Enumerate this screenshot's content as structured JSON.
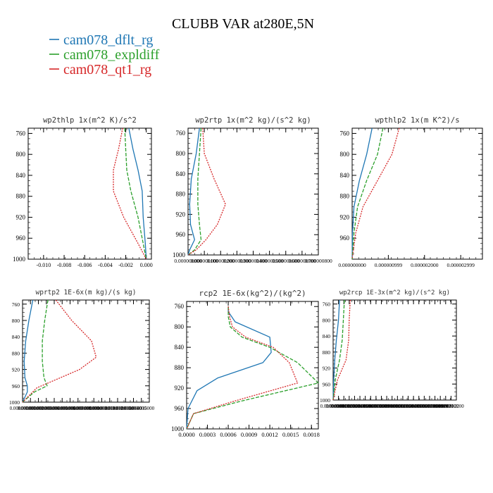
{
  "figure": {
    "title": "CLUBB VAR at280E,5N",
    "legend": [
      {
        "label": "cam078_dflt_rg",
        "color": "#1f77b4"
      },
      {
        "label": "cam078_expldiff",
        "color": "#2ca02c"
      },
      {
        "label": "cam078_qt1_rg",
        "color": "#d62728"
      }
    ]
  },
  "chart_data": [
    {
      "type": "line",
      "title": "wp2thlp  1x(m^2 K)/s^2",
      "xlim": [
        -0.0115,
        0.0005
      ],
      "ylim": [
        1000,
        750
      ],
      "xticks": [
        -0.01,
        -0.008,
        -0.006,
        -0.004,
        -0.002,
        0.0
      ],
      "xtick_labels": [
        "-0.010",
        "-0.008",
        "-0.006",
        "-0.004",
        "-0.002",
        "0.000"
      ],
      "yticks": [
        760,
        800,
        840,
        880,
        920,
        960,
        1000
      ],
      "ytick_labels": [
        "760",
        "800",
        "840",
        "880",
        "920",
        "960",
        "1000"
      ],
      "series": [
        {
          "name": "cam078_dflt_rg",
          "color": "#1f77b4",
          "dash": "solid",
          "x": [
            -0.0017,
            -0.0013,
            -0.0008,
            -0.0004,
            -0.0003,
            -0.0001,
            0.0
          ],
          "y": [
            750,
            790,
            830,
            870,
            920,
            970,
            1000
          ]
        },
        {
          "name": "cam078_expldiff",
          "color": "#2ca02c",
          "dash": "dash",
          "x": [
            -0.0021,
            -0.002,
            -0.0019,
            -0.0015,
            -0.0008,
            -0.0003,
            0.0
          ],
          "y": [
            750,
            790,
            830,
            870,
            920,
            970,
            1000
          ]
        },
        {
          "name": "cam078_qt1_rg",
          "color": "#d62728",
          "dash": "dot",
          "x": [
            -0.0023,
            -0.0027,
            -0.0032,
            -0.0032,
            -0.0022,
            -0.0008,
            0.0
          ],
          "y": [
            750,
            790,
            830,
            870,
            920,
            970,
            1000
          ]
        }
      ]
    },
    {
      "type": "line",
      "title": "wp2rtp  1x(m^2 kg)/(s^2 kg)",
      "xlim": [
        0,
        8e-07
      ],
      "ylim": [
        1000,
        750
      ],
      "xticks": [
        0,
        1e-07,
        2e-07,
        3e-07,
        4e-07,
        5e-07,
        6e-07,
        7e-07,
        8e-07
      ],
      "xtick_labels": [
        "0.000000000",
        "0.000000100",
        "0.000000200",
        "0.000000300",
        "0.000000400",
        "0.000000500",
        "0.000000600",
        "0.000000700",
        "0.000000800"
      ],
      "yticks": [
        760,
        800,
        840,
        880,
        920,
        960,
        1000
      ],
      "ytick_labels": [
        "760",
        "800",
        "840",
        "880",
        "920",
        "960",
        "1000"
      ],
      "series": [
        {
          "name": "cam078_dflt_rg",
          "color": "#1f77b4",
          "dash": "solid",
          "x": [
            7e-08,
            5e-08,
            2e-08,
            1e-08,
            1.5e-08,
            4e-08,
            1e-08,
            0.0
          ],
          "y": [
            750,
            800,
            850,
            900,
            940,
            970,
            990,
            1000
          ]
        },
        {
          "name": "cam078_expldiff",
          "color": "#2ca02c",
          "dash": "dash",
          "x": [
            8e-08,
            7e-08,
            6e-08,
            6e-08,
            7e-08,
            8e-08,
            4e-08,
            0.0
          ],
          "y": [
            750,
            800,
            850,
            900,
            940,
            970,
            990,
            1000
          ]
        },
        {
          "name": "cam078_qt1_rg",
          "color": "#d62728",
          "dash": "dot",
          "x": [
            9e-08,
            1e-07,
            1.6e-07,
            2.3e-07,
            1.8e-07,
            1.1e-07,
            5e-08,
            0.0
          ],
          "y": [
            750,
            800,
            850,
            900,
            940,
            970,
            990,
            1000
          ]
        }
      ]
    },
    {
      "type": "line",
      "title": "wpthlp2  1x(m K^2)/s",
      "xlim": [
        0,
        3.6e-06
      ],
      "ylim": [
        1000,
        750
      ],
      "xticks": [
        0,
        1e-06,
        2e-06,
        3e-06
      ],
      "xtick_labels": [
        "0.000000000",
        "0.000000999",
        "0.000002000",
        "0.000002999"
      ],
      "yticks": [
        760,
        800,
        840,
        880,
        920,
        960
      ],
      "ytick_labels": [
        "760",
        "800",
        "840",
        "880",
        "920",
        "960"
      ],
      "series": [
        {
          "name": "cam078_dflt_rg",
          "color": "#1f77b4",
          "dash": "solid",
          "x": [
            5.5e-07,
            4e-07,
            2e-07,
            5e-08,
            1e-08,
            0.0
          ],
          "y": [
            750,
            800,
            850,
            900,
            950,
            1000
          ]
        },
        {
          "name": "cam078_expldiff",
          "color": "#2ca02c",
          "dash": "dash",
          "x": [
            8.5e-07,
            7e-07,
            4e-07,
            1.5e-07,
            5e-08,
            0.0
          ],
          "y": [
            750,
            800,
            850,
            900,
            950,
            1000
          ]
        },
        {
          "name": "cam078_qt1_rg",
          "color": "#d62728",
          "dash": "dot",
          "x": [
            1.3e-06,
            1.1e-06,
            7e-07,
            3e-07,
            1e-07,
            0.0
          ],
          "y": [
            750,
            800,
            850,
            900,
            950,
            1000
          ]
        }
      ]
    },
    {
      "type": "line",
      "title": "wprtp2  1E-6x(m kg)/(s kg)",
      "xlim": [
        0,
        1.6e-05
      ],
      "ylim": [
        1000,
        750
      ],
      "xticks": [
        0,
        1e-06,
        2e-06,
        3e-06,
        4e-06,
        5e-06,
        6e-06,
        7e-06,
        8e-06,
        9e-06,
        1e-05,
        1.1e-05,
        1.2e-05,
        1.3e-05,
        1.4e-05,
        1.5e-05
      ],
      "xtick_labels": [
        "0.000000000",
        "0.000001000",
        "0.000002000",
        "0.000003000",
        "0.000004000",
        "0.000005000",
        "0.000006000",
        "0.000007000",
        "0.000008000",
        "0.000009000",
        "0.000010000",
        "0.000011000",
        "0.000012000",
        "0.000013000",
        "0.000014000",
        "0.000015000"
      ],
      "yticks": [
        760,
        800,
        840,
        880,
        920,
        960,
        1000
      ],
      "ytick_labels": [
        "760",
        "800",
        "840",
        "880",
        "920",
        "960",
        "1000"
      ],
      "series": [
        {
          "name": "cam078_dflt_rg",
          "color": "#1f77b4",
          "dash": "solid",
          "x": [
            1.3e-06,
            8e-07,
            4e-07,
            2e-07,
            3e-07,
            6e-07,
            6e-07,
            0.0
          ],
          "y": [
            750,
            800,
            850,
            900,
            940,
            960,
            975,
            1000
          ]
        },
        {
          "name": "cam078_expldiff",
          "color": "#2ca02c",
          "dash": "dash",
          "x": [
            3.2e-06,
            2.8e-06,
            2.5e-06,
            2.5e-06,
            2.7e-06,
            3.1e-06,
            1.5e-06,
            0.0
          ],
          "y": [
            750,
            800,
            850,
            900,
            940,
            960,
            975,
            1000
          ]
        },
        {
          "name": "cam078_qt1_rg",
          "color": "#d62728",
          "dash": "dot",
          "x": [
            4.2e-06,
            6.2e-06,
            8.7e-06,
            9.3e-06,
            7.2e-06,
            4.2e-06,
            1.8e-06,
            0.0
          ],
          "y": [
            750,
            800,
            850,
            890,
            920,
            945,
            965,
            1000
          ]
        }
      ]
    },
    {
      "type": "line",
      "title": "rcp2  1E-6x(kg^2)/(kg^2)",
      "xlim": [
        0,
        0.0019
      ],
      "ylim": [
        1000,
        750
      ],
      "xticks": [
        0,
        0.0003,
        0.0006,
        0.0009,
        0.0012,
        0.0015,
        0.0018
      ],
      "xtick_labels": [
        "0.0000",
        "0.0003",
        "0.0006",
        "0.0009",
        "0.0012",
        "0.0015",
        "0.0018"
      ],
      "yticks": [
        760,
        800,
        840,
        880,
        920,
        960,
        1000
      ],
      "ytick_labels": [
        "760",
        "800",
        "840",
        "880",
        "920",
        "960",
        "1000"
      ],
      "series": [
        {
          "name": "cam078_dflt_rg",
          "color": "#1f77b4",
          "dash": "solid",
          "x": [
            0.0006,
            0.0006,
            0.00065,
            0.0007,
            0.0012,
            0.00122,
            0.0011,
            0.00045,
            0.00015,
            2e-05,
            0.0
          ],
          "y": [
            760,
            770,
            780,
            790,
            820,
            850,
            870,
            900,
            925,
            960,
            1000
          ]
        },
        {
          "name": "cam078_expldiff",
          "color": "#2ca02c",
          "dash": "dash",
          "x": [
            0.0006,
            0.0006,
            0.00063,
            0.0008,
            0.0012,
            0.0016,
            0.0019,
            0.0008,
            0.0001,
            0.0
          ],
          "y": [
            760,
            780,
            800,
            820,
            840,
            870,
            910,
            945,
            970,
            1000
          ]
        },
        {
          "name": "cam078_qt1_rg",
          "color": "#d62728",
          "dash": "dot",
          "x": [
            0.0006,
            0.00062,
            0.00066,
            0.00085,
            0.00125,
            0.00148,
            0.0016,
            0.0007,
            0.0001,
            0.0
          ],
          "y": [
            760,
            780,
            800,
            820,
            840,
            870,
            910,
            945,
            970,
            1000
          ]
        }
      ]
    },
    {
      "type": "line",
      "title": "wp2rcp  1E-3x(m^2 kg)/(s^2 kg)",
      "xlim": [
        0,
        2.3e-06
      ],
      "ylim": [
        1000,
        750
      ],
      "xticks": [
        0,
        1e-07,
        2e-07,
        3e-07,
        4e-07,
        5e-07,
        6e-07,
        7e-07,
        8e-07,
        9e-07,
        1e-06,
        1.1e-06,
        1.2e-06,
        1.3e-06,
        1.4e-06,
        1.5e-06,
        1.6e-06,
        1.7e-06,
        1.8e-06,
        1.9e-06,
        2e-06,
        2.1e-06,
        2.2e-06
      ],
      "xtick_labels": [
        "0.000000000",
        "0.000000100",
        "0.000000200",
        "0.000000300",
        "0.000000400",
        "0.000000500",
        "0.000000600",
        "0.000000700",
        "0.000000800",
        "0.000000900",
        "0.000001000",
        "0.000001100",
        "0.000001200",
        "0.000001300",
        "0.000001400",
        "0.000001500",
        "0.000001600",
        "0.000001700",
        "0.000001800",
        "0.000001900",
        "0.000002000",
        "0.000002100",
        "0.000002200"
      ],
      "yticks": [
        760,
        800,
        840,
        880,
        920,
        960,
        1000
      ],
      "ytick_labels": [
        "760",
        "800",
        "840",
        "880",
        "920",
        "960",
        "1000"
      ],
      "series": [
        {
          "name": "cam078_dflt_rg",
          "color": "#1f77b4",
          "dash": "solid",
          "x": [
            1.2e-07,
            1e-07,
            6e-08,
            3e-08,
            1e-08,
            0.0
          ],
          "y": [
            750,
            800,
            850,
            900,
            950,
            1000
          ]
        },
        {
          "name": "cam078_expldiff",
          "color": "#2ca02c",
          "dash": "dash",
          "x": [
            2.1e-07,
            1.9e-07,
            1.7e-07,
            1.2e-07,
            4e-08,
            0.0
          ],
          "y": [
            750,
            800,
            850,
            900,
            950,
            1000
          ]
        },
        {
          "name": "cam078_qt1_rg",
          "color": "#d62728",
          "dash": "dot",
          "x": [
            3.2e-07,
            3e-07,
            2.9e-07,
            2.4e-07,
            8e-08,
            0.0
          ],
          "y": [
            750,
            800,
            850,
            900,
            950,
            1000
          ]
        }
      ]
    }
  ]
}
